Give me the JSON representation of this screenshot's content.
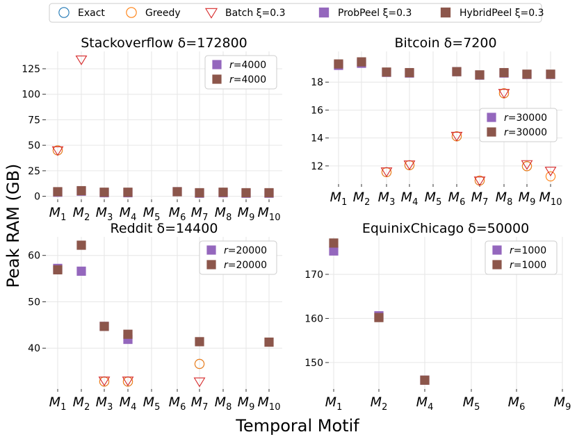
{
  "figure": {
    "ylabel": "Peak RAM (GB)",
    "xlabel": "Temporal Motif"
  },
  "legend": {
    "items": [
      {
        "key": "exact",
        "label": "Exact",
        "marker": "circle-open",
        "color": "#1f77b4"
      },
      {
        "key": "greedy",
        "label": "Greedy",
        "marker": "circle-open",
        "color": "#ff7f0e"
      },
      {
        "key": "batch",
        "label": "Batch ξ=0.3",
        "marker": "triangle-down-open",
        "color": "#d62728"
      },
      {
        "key": "probpeel",
        "label": "ProbPeel ξ=0.3",
        "marker": "square",
        "color": "#9467bd"
      },
      {
        "key": "hybridpeel",
        "label": "HybridPeel ξ=0.3",
        "marker": "square",
        "color": "#8c564b"
      }
    ]
  },
  "chart_data": [
    {
      "type": "scatter",
      "title": "Stackoverflow δ=172800",
      "categories": [
        "M1",
        "M2",
        "M3",
        "M4",
        "M5",
        "M6",
        "M7",
        "M8",
        "M9",
        "M10"
      ],
      "ylim": [
        -3,
        142
      ],
      "yticks": [
        0,
        25,
        50,
        75,
        100,
        125
      ],
      "grid": true,
      "inner_legend": [
        "r=4000",
        "r=4000"
      ],
      "legend_position": "upper-right",
      "series": [
        {
          "key": "exact",
          "values": [
            45,
            null,
            null,
            null,
            null,
            null,
            null,
            null,
            null,
            null
          ]
        },
        {
          "key": "greedy",
          "values": [
            45,
            null,
            null,
            null,
            null,
            null,
            null,
            null,
            null,
            null
          ]
        },
        {
          "key": "batch",
          "values": [
            45,
            134,
            null,
            null,
            null,
            null,
            null,
            null,
            null,
            null
          ]
        },
        {
          "key": "probpeel",
          "values": [
            4,
            5,
            3.5,
            3.5,
            null,
            4.5,
            3,
            3.5,
            3,
            3
          ]
        },
        {
          "key": "hybridpeel",
          "values": [
            4.5,
            5.5,
            4,
            4,
            null,
            4.5,
            3.5,
            4,
            3.5,
            3.5
          ]
        }
      ]
    },
    {
      "type": "scatter",
      "title": "Bitcoin δ=7200",
      "categories": [
        "M1",
        "M2",
        "M3",
        "M4",
        "M5",
        "M6",
        "M7",
        "M8",
        "M9",
        "M10"
      ],
      "ylim": [
        10.7,
        20.2
      ],
      "yticks": [
        12,
        14,
        16,
        18
      ],
      "grid": true,
      "inner_legend": [
        "r=30000",
        "r=30000"
      ],
      "legend_position": "center-right",
      "series": [
        {
          "key": "exact",
          "values": [
            null,
            null,
            11.55,
            12.05,
            null,
            14.12,
            10.95,
            17.2,
            11.98,
            null
          ]
        },
        {
          "key": "greedy",
          "values": [
            null,
            null,
            11.55,
            12.05,
            null,
            14.12,
            10.95,
            17.2,
            11.98,
            11.25
          ]
        },
        {
          "key": "batch",
          "values": [
            null,
            null,
            11.6,
            12.1,
            null,
            14.15,
            10.95,
            17.22,
            12.12,
            11.65
          ]
        },
        {
          "key": "probpeel",
          "values": [
            19.2,
            19.35,
            18.7,
            18.65,
            null,
            18.75,
            18.5,
            18.65,
            18.55,
            18.55
          ]
        },
        {
          "key": "hybridpeel",
          "values": [
            19.3,
            19.45,
            18.72,
            18.68,
            null,
            18.75,
            18.52,
            18.68,
            18.57,
            18.57
          ]
        }
      ]
    },
    {
      "type": "scatter",
      "title": "Reddit δ=14400",
      "categories": [
        "M1",
        "M2",
        "M3",
        "M4",
        "M5",
        "M6",
        "M7",
        "M8",
        "M9",
        "M10"
      ],
      "ylim": [
        31.2,
        64
      ],
      "yticks": [
        40,
        50,
        60
      ],
      "grid": true,
      "inner_legend": [
        "r=20000",
        "r=20000"
      ],
      "legend_position": "upper-right",
      "series": [
        {
          "key": "exact",
          "values": [
            null,
            null,
            32.8,
            32.8,
            null,
            null,
            36.6,
            null,
            null,
            null
          ]
        },
        {
          "key": "greedy",
          "values": [
            null,
            null,
            32.8,
            32.8,
            null,
            null,
            36.6,
            null,
            null,
            null
          ]
        },
        {
          "key": "batch",
          "values": [
            null,
            null,
            33.0,
            33.0,
            null,
            null,
            32.8,
            null,
            null,
            null
          ]
        },
        {
          "key": "probpeel",
          "values": [
            57.2,
            56.6,
            44.7,
            41.9,
            null,
            null,
            null,
            null,
            null,
            null
          ]
        },
        {
          "key": "hybridpeel",
          "values": [
            56.9,
            62.2,
            44.7,
            43.0,
            null,
            null,
            41.4,
            null,
            null,
            41.3
          ]
        }
      ]
    },
    {
      "type": "scatter",
      "title": "EquinixChicago δ=50000",
      "categories": [
        "M1",
        "M2",
        "M4",
        "M5",
        "M6",
        "M9"
      ],
      "ylim": [
        144,
        178.5
      ],
      "yticks": [
        150,
        160,
        170
      ],
      "grid": true,
      "inner_legend": [
        "r=1000",
        "r=1000"
      ],
      "legend_position": "upper-right",
      "series": [
        {
          "key": "exact",
          "values": [
            null,
            null,
            null,
            null,
            null,
            null
          ]
        },
        {
          "key": "greedy",
          "values": [
            null,
            null,
            null,
            null,
            null,
            null
          ]
        },
        {
          "key": "batch",
          "values": [
            null,
            null,
            null,
            null,
            null,
            null
          ]
        },
        {
          "key": "probpeel",
          "values": [
            175.3,
            160.6,
            146.0,
            null,
            null,
            null
          ]
        },
        {
          "key": "hybridpeel",
          "values": [
            177.1,
            160.2,
            146.0,
            null,
            null,
            null
          ]
        }
      ]
    }
  ]
}
